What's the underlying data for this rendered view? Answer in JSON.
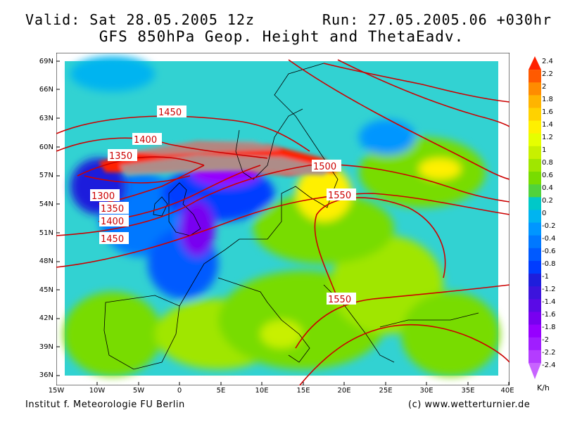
{
  "header": {
    "valid": "Valid: Sat 28.05.2005 12z",
    "run": "Run: 27.05.2005.06 +030hr",
    "title": "GFS 850hPa Geop. Height and ThetaEadv."
  },
  "footer": {
    "institute": "Institut f. Meteorologie  FU Berlin",
    "copyright": "(c) www.wetterturnier.de"
  },
  "axes": {
    "lat_labels": [
      "69N",
      "66N",
      "63N",
      "60N",
      "57N",
      "54N",
      "51N",
      "48N",
      "45N",
      "42N",
      "39N",
      "36N"
    ],
    "lon_labels": [
      "15W",
      "10W",
      "5W",
      "0",
      "5E",
      "10E",
      "15E",
      "20E",
      "25E",
      "30E",
      "35E",
      "40E"
    ]
  },
  "colorbar": {
    "unit": "K/h",
    "levels": [
      "2.4",
      "2.2",
      "2",
      "1.8",
      "1.6",
      "1.4",
      "1.2",
      "1",
      "0.8",
      "0.6",
      "0.4",
      "0.2",
      "0",
      "-0.2",
      "-0.4",
      "-0.6",
      "-0.8",
      "-1",
      "-1.2",
      "-1.4",
      "-1.6",
      "-1.8",
      "-2",
      "-2.2",
      "-2.4"
    ],
    "colors": [
      "#ff2000",
      "#ff5a00",
      "#ff8c00",
      "#ffb400",
      "#ffd200",
      "#fff000",
      "#e6ff00",
      "#c8f000",
      "#a0e600",
      "#78dc00",
      "#50d23c",
      "#00c8c8",
      "#00b4f0",
      "#0096ff",
      "#0078ff",
      "#005aff",
      "#003cff",
      "#1e1edc",
      "#3c14dc",
      "#5a0ae6",
      "#7800f0",
      "#9600ff",
      "#a01eff",
      "#b43cff",
      "#c864ff"
    ]
  },
  "contour_labels": [
    "1450",
    "1400",
    "1350",
    "1300",
    "1350",
    "1400",
    "1450",
    "1500",
    "1550",
    "1550"
  ],
  "colors": {
    "contour": "#cc0000",
    "bg_field": "#1ec8e6"
  }
}
